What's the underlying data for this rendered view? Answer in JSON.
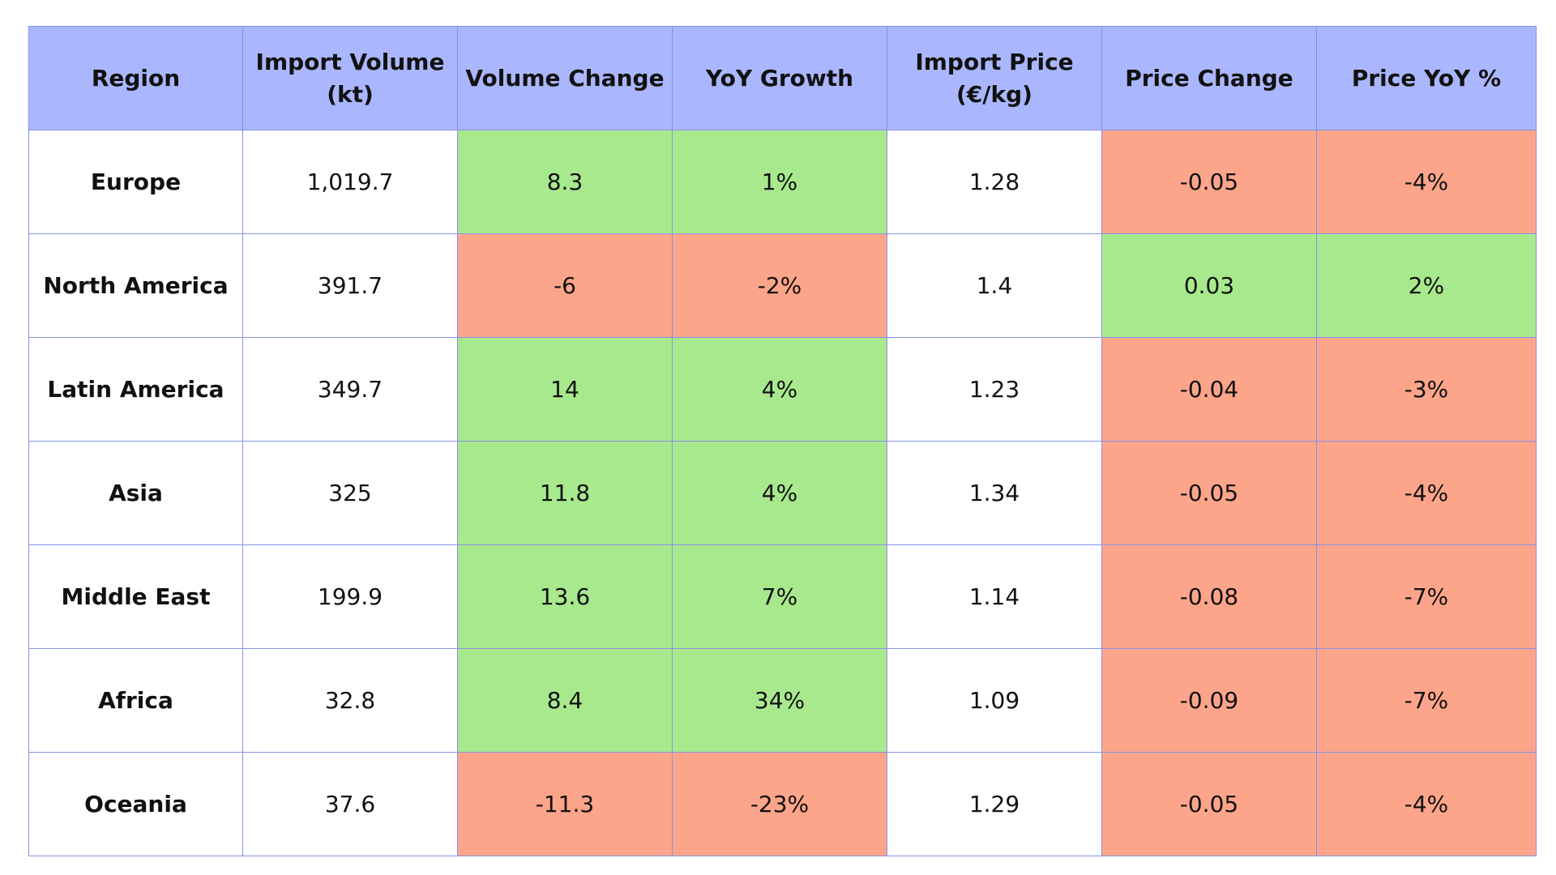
{
  "chart_data": {
    "type": "table",
    "colors": {
      "header": "#aab6fe",
      "positive": "#a9e98e",
      "negative": "#fda58a",
      "neutral": "#ffffff",
      "border": "#8891e8"
    },
    "columns": [
      "Region",
      "Import Volume (kt)",
      "Volume Change",
      "YoY Growth",
      "Import Price (€/kg)",
      "Price Change",
      "Price YoY %"
    ],
    "rows": [
      {
        "cells": [
          "Europe",
          "1,019.7",
          "8.3",
          "1%",
          "1.28",
          "-0.05",
          "-4%"
        ],
        "status": [
          "neutral",
          "neutral",
          "positive",
          "positive",
          "neutral",
          "negative",
          "negative"
        ]
      },
      {
        "cells": [
          "North America",
          "391.7",
          "-6",
          "-2%",
          "1.4",
          "0.03",
          "2%"
        ],
        "status": [
          "neutral",
          "neutral",
          "negative",
          "negative",
          "neutral",
          "positive",
          "positive"
        ]
      },
      {
        "cells": [
          "Latin America",
          "349.7",
          "14",
          "4%",
          "1.23",
          "-0.04",
          "-3%"
        ],
        "status": [
          "neutral",
          "neutral",
          "positive",
          "positive",
          "neutral",
          "negative",
          "negative"
        ]
      },
      {
        "cells": [
          "Asia",
          "325",
          "11.8",
          "4%",
          "1.34",
          "-0.05",
          "-4%"
        ],
        "status": [
          "neutral",
          "neutral",
          "positive",
          "positive",
          "neutral",
          "negative",
          "negative"
        ]
      },
      {
        "cells": [
          "Middle East",
          "199.9",
          "13.6",
          "7%",
          "1.14",
          "-0.08",
          "-7%"
        ],
        "status": [
          "neutral",
          "neutral",
          "positive",
          "positive",
          "neutral",
          "negative",
          "negative"
        ]
      },
      {
        "cells": [
          "Africa",
          "32.8",
          "8.4",
          "34%",
          "1.09",
          "-0.09",
          "-7%"
        ],
        "status": [
          "neutral",
          "neutral",
          "positive",
          "positive",
          "neutral",
          "negative",
          "negative"
        ]
      },
      {
        "cells": [
          "Oceania",
          "37.6",
          "-11.3",
          "-23%",
          "1.29",
          "-0.05",
          "-4%"
        ],
        "status": [
          "neutral",
          "neutral",
          "negative",
          "negative",
          "neutral",
          "negative",
          "negative"
        ]
      }
    ]
  }
}
